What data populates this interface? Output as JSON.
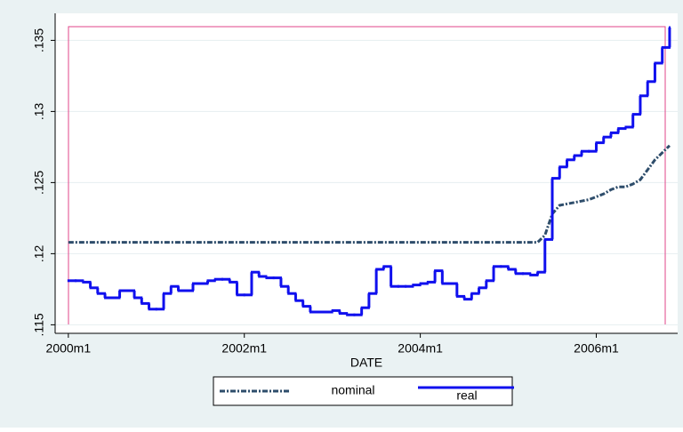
{
  "chart_data": {
    "type": "line",
    "x": [
      480,
      481,
      482,
      483,
      484,
      485,
      486,
      487,
      488,
      489,
      490,
      491,
      492,
      493,
      494,
      495,
      496,
      497,
      498,
      499,
      500,
      501,
      502,
      503,
      504,
      505,
      506,
      507,
      508,
      509,
      510,
      511,
      512,
      513,
      514,
      515,
      516,
      517,
      518,
      519,
      520,
      521,
      522,
      523,
      524,
      525,
      526,
      527,
      528,
      529,
      530,
      531,
      532,
      533,
      534,
      535,
      536,
      537,
      538,
      539,
      540,
      541,
      542,
      543,
      544,
      545,
      546,
      547,
      548,
      549,
      550,
      551,
      552,
      553,
      554,
      555,
      556,
      557,
      558,
      559,
      560,
      561,
      562
    ],
    "series": [
      {
        "name": "nominal",
        "color": "#2e4d6b",
        "style": "dash-dot",
        "values": [
          0.1208,
          0.1208,
          0.1208,
          0.1208,
          0.1208,
          0.1208,
          0.1208,
          0.1208,
          0.1208,
          0.1208,
          0.1208,
          0.1208,
          0.1208,
          0.1208,
          0.1208,
          0.1208,
          0.1208,
          0.1208,
          0.1208,
          0.1208,
          0.1208,
          0.1208,
          0.1208,
          0.1208,
          0.1208,
          0.1208,
          0.1208,
          0.1208,
          0.1208,
          0.1208,
          0.1208,
          0.1208,
          0.1208,
          0.1208,
          0.1208,
          0.1208,
          0.1208,
          0.1208,
          0.1208,
          0.1208,
          0.1208,
          0.1208,
          0.1208,
          0.1208,
          0.1208,
          0.1208,
          0.1208,
          0.1208,
          0.1208,
          0.1208,
          0.1208,
          0.1208,
          0.1208,
          0.1208,
          0.1208,
          0.1208,
          0.1208,
          0.1208,
          0.1208,
          0.1208,
          0.1208,
          0.1208,
          0.1208,
          0.1208,
          0.1208,
          0.1213,
          0.1228,
          0.1234,
          0.1235,
          0.1236,
          0.1237,
          0.1238,
          0.124,
          0.1242,
          0.1245,
          0.1247,
          0.1247,
          0.1249,
          0.1252,
          0.1259,
          0.1266,
          0.1271,
          0.1276
        ]
      },
      {
        "name": "real",
        "color": "#1010ee",
        "style": "step",
        "values": [
          0.1181,
          0.1181,
          0.118,
          0.1176,
          0.1172,
          0.1169,
          0.1169,
          0.1174,
          0.1174,
          0.1169,
          0.1165,
          0.1161,
          0.1161,
          0.1172,
          0.1177,
          0.1174,
          0.1174,
          0.1179,
          0.1179,
          0.1181,
          0.1182,
          0.1182,
          0.118,
          0.1171,
          0.1171,
          0.1187,
          0.1184,
          0.1183,
          0.1183,
          0.1177,
          0.1172,
          0.1167,
          0.1163,
          0.1159,
          0.1159,
          0.1159,
          0.116,
          0.1158,
          0.1157,
          0.1157,
          0.1162,
          0.1172,
          0.1189,
          0.1191,
          0.1177,
          0.1177,
          0.1177,
          0.1178,
          0.1179,
          0.118,
          0.1188,
          0.1179,
          0.1179,
          0.117,
          0.1168,
          0.1172,
          0.1176,
          0.1181,
          0.1191,
          0.1191,
          0.1189,
          0.1186,
          0.1186,
          0.1185,
          0.1187,
          0.121,
          0.1253,
          0.1261,
          0.1266,
          0.1269,
          0.1272,
          0.1272,
          0.1278,
          0.1282,
          0.1285,
          0.1288,
          0.1289,
          0.1298,
          0.1311,
          0.1321,
          0.1334,
          0.1345,
          0.1359
        ]
      }
    ],
    "x_label": "DATE",
    "xlim": [
      478.2,
      563.1
    ],
    "xticks": [
      {
        "value": 480,
        "label": "2000m1"
      },
      {
        "value": 504,
        "label": "2002m1"
      },
      {
        "value": 528,
        "label": "2004m1"
      },
      {
        "value": 552,
        "label": "2006m1"
      }
    ],
    "ylim": [
      0.1144,
      0.1369
    ],
    "yticks": [
      {
        "value": 0.115,
        "label": ".115"
      },
      {
        "value": 0.12,
        "label": ".12"
      },
      {
        "value": 0.125,
        "label": ".125"
      },
      {
        "value": 0.13,
        "label": ".13"
      },
      {
        "value": 0.135,
        "label": ".135"
      }
    ],
    "grid": true
  }
}
